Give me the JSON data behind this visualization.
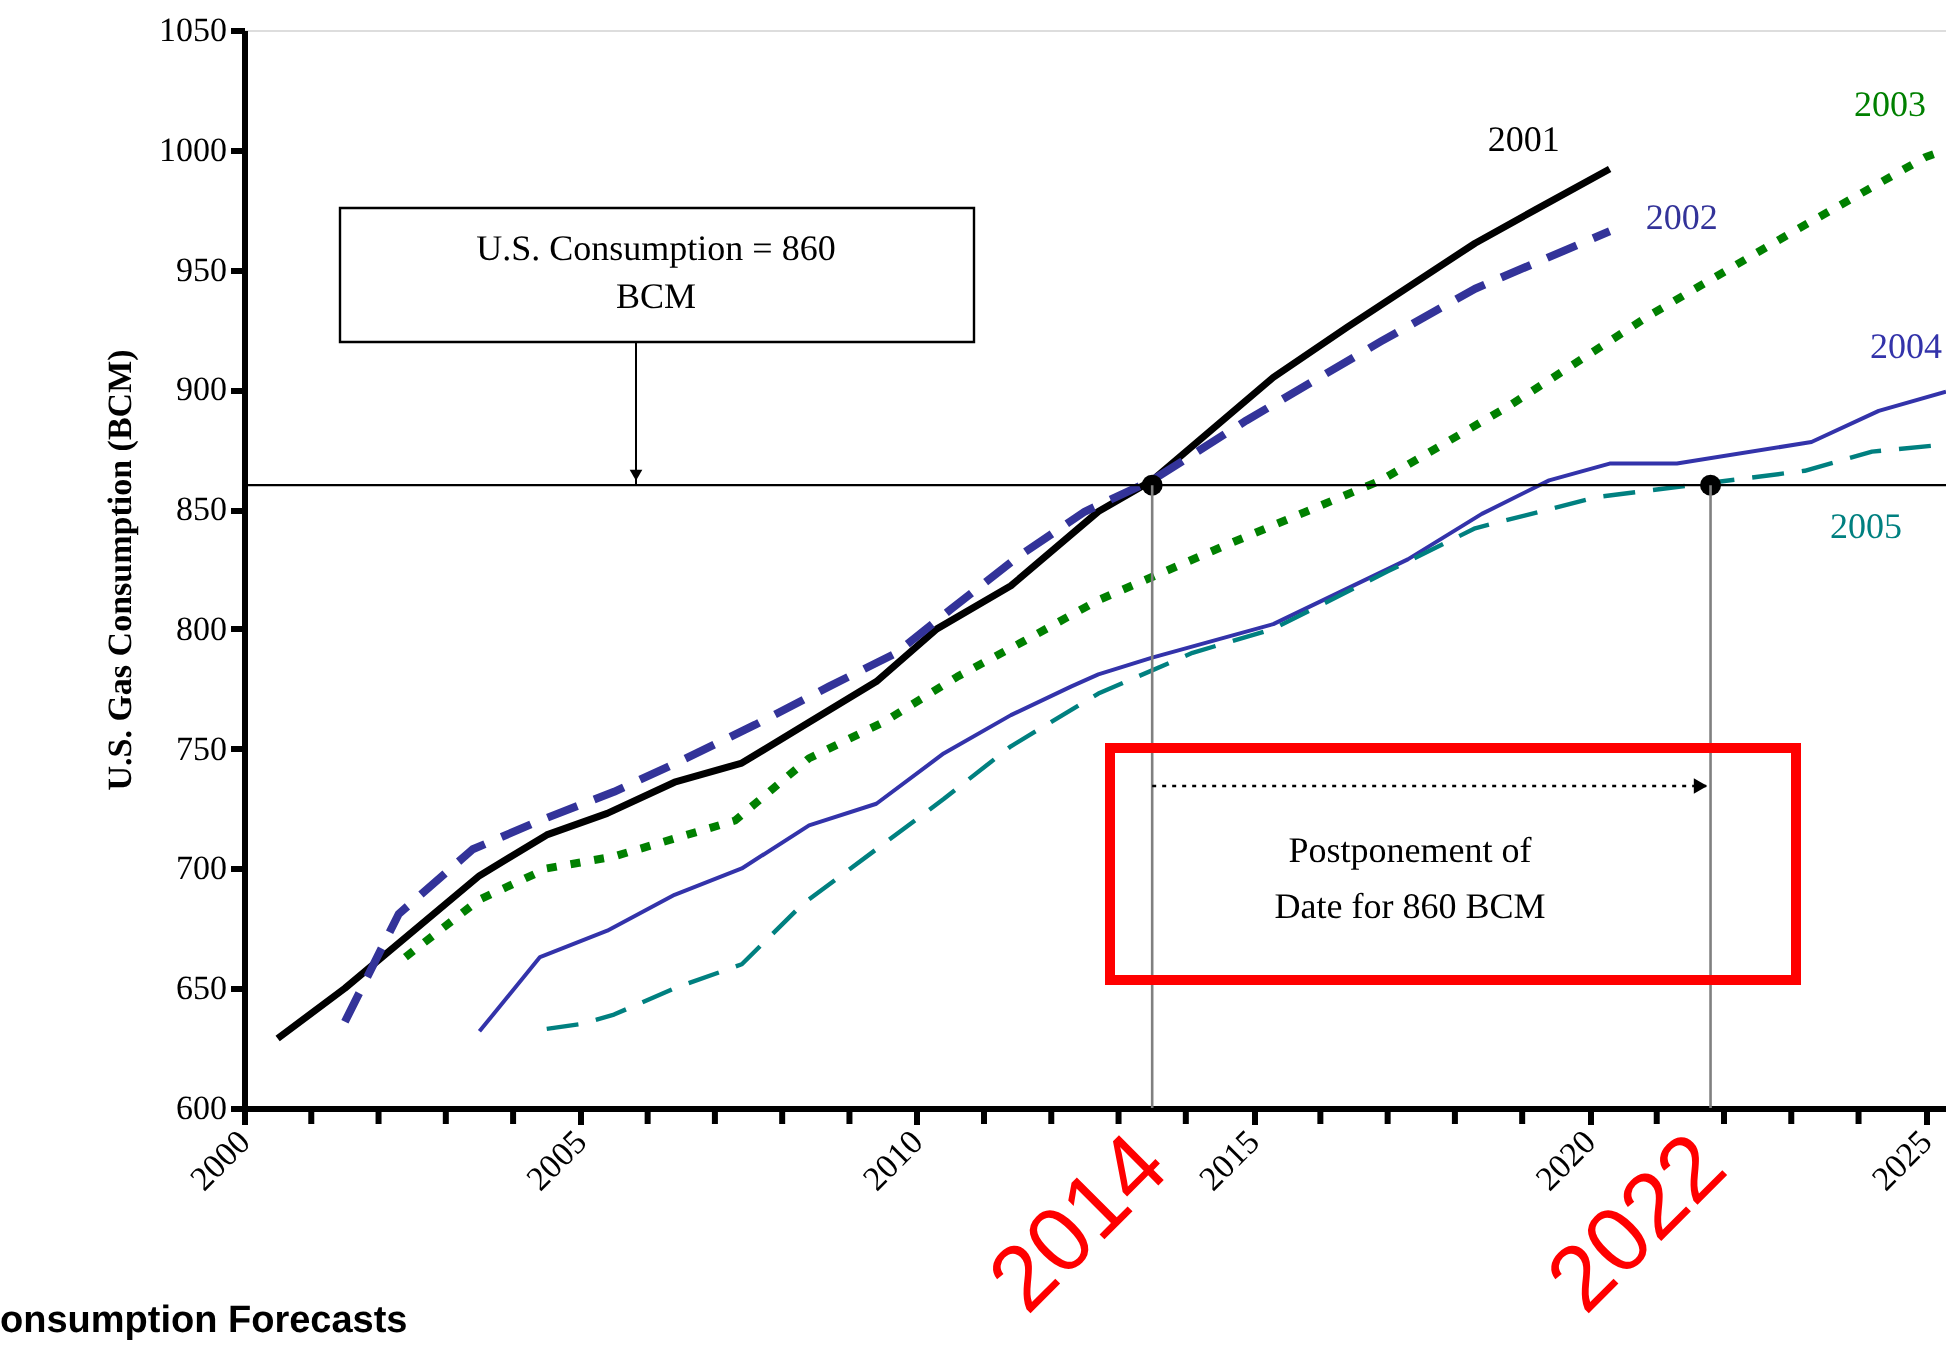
{
  "chart_data": {
    "type": "line",
    "ylabel": "U.S. Gas Consumption (BCM)",
    "xlim": [
      2000,
      2025.3
    ],
    "xticks": [
      2000,
      {
        "value": 2001,
        "label": null
      },
      {
        "value": 2002,
        "label": null
      },
      {
        "value": 2003,
        "label": null
      },
      {
        "value": 2004,
        "label": null
      },
      2005,
      {
        "value": 2006,
        "label": null
      },
      {
        "value": 2007,
        "label": null
      },
      {
        "value": 2008,
        "label": null
      },
      {
        "value": 2009,
        "label": null
      },
      2010,
      {
        "value": 2011,
        "label": null
      },
      {
        "value": 2012,
        "label": null
      },
      {
        "value": 2013,
        "label": null
      },
      {
        "value": 2014,
        "label": null
      },
      2015,
      {
        "value": 2016,
        "label": null
      },
      {
        "value": 2017,
        "label": null
      },
      {
        "value": 2018,
        "label": null
      },
      {
        "value": 2019,
        "label": null
      },
      2020,
      {
        "value": 2021,
        "label": null
      },
      {
        "value": 2022,
        "label": null
      },
      {
        "value": 2023,
        "label": null
      },
      {
        "value": 2024,
        "label": null
      },
      2025
    ],
    "ylim": [
      600,
      1050
    ],
    "yticks": [
      600,
      650,
      700,
      750,
      800,
      850,
      900,
      950,
      1000,
      1050
    ],
    "grid": false,
    "series": [
      {
        "name": "2001",
        "color": "#000000",
        "line_style": "solid",
        "x": [
          2000.5,
          2001.5,
          2003.5,
          2004.5,
          2005.4,
          2006.4,
          2007.4,
          2008.4,
          2009.4,
          2010.3,
          2011.4,
          2012.7,
          2013.5,
          2015.3,
          2016.4,
          2018.3,
          2019.2,
          2020.3
        ],
        "values": [
          629,
          650,
          697,
          714,
          723,
          736,
          744,
          761,
          778,
          800,
          818,
          849,
          862,
          905,
          926,
          961,
          975,
          992
        ]
      },
      {
        "name": "2002",
        "color": "#333399",
        "line_style": "dashed",
        "x": [
          2001.5,
          2002.3,
          2003.4,
          2004.4,
          2005.5,
          2006.5,
          2007.6,
          2008.7,
          2009.7,
          2010.5,
          2011.5,
          2012.5,
          2013.5,
          2014.9,
          2016.9,
          2018.3,
          2020.3
        ],
        "values": [
          636,
          681,
          708,
          720,
          732,
          745,
          760,
          776,
          790,
          808,
          830,
          849,
          862,
          887,
          920,
          942,
          966
        ]
      },
      {
        "name": "2003",
        "color": "#008000",
        "line_style": "dotted",
        "x": [
          2002.4,
          2003.5,
          2004.5,
          2005.5,
          2007.3,
          2008.4,
          2009.5,
          2010.6,
          2011.6,
          2012.7,
          2014.6,
          2016.9,
          2018.8,
          2020.9,
          2023.1,
          2025.0,
          2025.3
        ],
        "values": [
          663,
          687,
          700,
          705,
          720,
          746,
          761,
          780,
          795,
          812,
          835,
          862,
          893,
          931,
          967,
          997,
          1000
        ]
      },
      {
        "name": "2004",
        "color": "#3333aa",
        "line_style": "solid",
        "x": [
          2003.5,
          2004.4,
          2005.4,
          2006.4,
          2007.4,
          2008.4,
          2009.4,
          2010.4,
          2011.4,
          2012.3,
          2012.7,
          2013.5,
          2015.3,
          2017.3,
          2018.4,
          2019.4,
          2020.3,
          2021.3,
          2023.3,
          2024.3,
          2025.3
        ],
        "values": [
          632,
          663,
          674,
          689,
          700,
          718,
          727,
          748,
          764,
          776,
          781,
          788,
          802,
          829,
          848,
          862,
          869,
          869,
          878,
          891,
          899
        ]
      },
      {
        "name": "2005",
        "color": "#008080",
        "line_style": "dashed",
        "x": [
          2004.5,
          2005.0,
          2005.5,
          2006.4,
          2007.4,
          2008.3,
          2009.4,
          2010.4,
          2011.4,
          2012.7,
          2014.1,
          2015.3,
          2017.0,
          2018.3,
          2020.1,
          2021.8,
          2023.2,
          2024.2,
          2025.3
        ],
        "values": [
          633,
          635,
          639,
          650,
          660,
          685,
          708,
          729,
          751,
          773,
          790,
          800,
          824,
          842,
          855,
          861,
          866,
          874,
          877
        ]
      },
      {
        "type": "scatter",
        "color": "#000000",
        "marker": "circle",
        "x": [
          2013.5,
          2021.8
        ],
        "values": [
          860,
          860
        ]
      }
    ],
    "ref_lines": [
      {
        "axis": "y",
        "value": 860,
        "label": "U.S. Consumption = 860 BCM",
        "color": "#000000"
      },
      {
        "axis": "x",
        "value": 2013.5,
        "label": "2014",
        "color": "#808080"
      },
      {
        "axis": "x",
        "value": 2021.8,
        "label": "2022",
        "color": "#808080"
      }
    ],
    "annotations": [
      "Postponement of Date for 860 BCM",
      "onsumption Forecasts"
    ]
  }
}
